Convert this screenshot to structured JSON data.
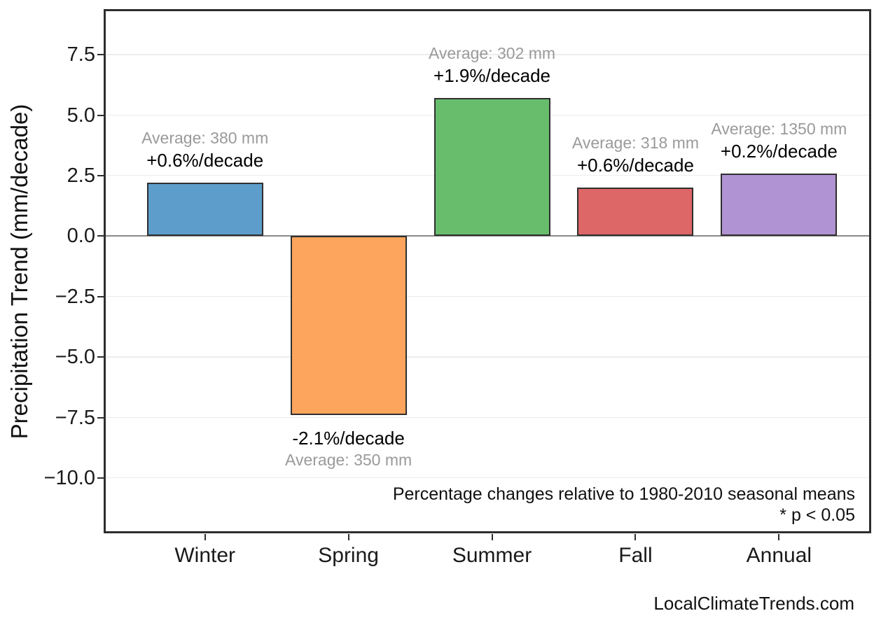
{
  "chart_data": {
    "type": "bar",
    "ylabel": "Precipitation Trend (mm/decade)",
    "categories": [
      "Winter",
      "Spring",
      "Summer",
      "Fall",
      "Annual"
    ],
    "values": [
      2.2,
      -7.4,
      5.7,
      2.0,
      2.6
    ],
    "average_labels": [
      "Average: 380 mm",
      "Average: 350 mm",
      "Average: 302 mm",
      "Average: 318 mm",
      "Average: 1350 mm"
    ],
    "percent_labels": [
      "+0.6%/decade",
      "-2.1%/decade",
      "+1.9%/decade",
      "+0.6%/decade",
      "+0.2%/decade"
    ],
    "bar_colors": [
      "#5c9dcb",
      "#fda55c",
      "#68bd6c",
      "#dd6666",
      "#b093d2"
    ],
    "bar_edge_color": "#2f2f2f",
    "yticks": [
      7.5,
      5.0,
      2.5,
      0.0,
      -2.5,
      -5.0,
      -7.5,
      -10.0
    ],
    "ytick_labels": [
      "7.5",
      "5.0",
      "2.5",
      "0.0",
      "−2.5",
      "−5.0",
      "−7.5",
      "−10.0"
    ],
    "ylim": [
      -12.2,
      9.3
    ],
    "grid": "horizontal",
    "gridline_color": "#ececec",
    "zero_line": true,
    "zero_line_color": "#8a8a8a",
    "average_text_color": "#9a9a9a",
    "percent_text_color": "#000000",
    "annotations": {
      "note_line1": "Percentage changes relative to 1980-2010 seasonal means",
      "note_line2": "* p < 0.05"
    },
    "watermark": "LocalClimateTrends.com",
    "legend": "none",
    "title": ""
  }
}
